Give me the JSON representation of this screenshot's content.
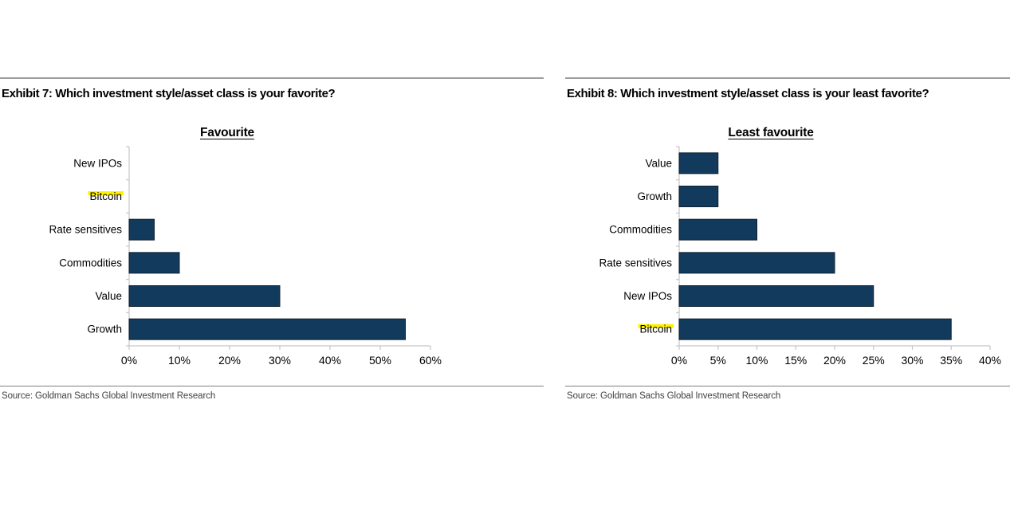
{
  "panels": [
    {
      "exhibit_title": "Exhibit 7: Which investment style/asset class is your favorite?",
      "source": "Source: Goldman Sachs Global Investment Research"
    },
    {
      "exhibit_title": "Exhibit 8: Which investment style/asset class is your least favorite?",
      "source": "Source: Goldman Sachs Global Investment Research"
    }
  ],
  "chart_data": [
    {
      "type": "bar",
      "orientation": "horizontal",
      "title": "Favourite",
      "categories": [
        "New IPOs",
        "Bitcoin",
        "Rate sensitives",
        "Commodities",
        "Value",
        "Growth"
      ],
      "values": [
        0,
        0,
        5,
        10,
        30,
        55
      ],
      "unit": "%",
      "xlim": [
        0,
        60
      ],
      "xtick_step": 10,
      "xtick_labels": [
        "0%",
        "10%",
        "20%",
        "30%",
        "40%",
        "50%",
        "60%"
      ],
      "highlighted_category": "Bitcoin",
      "grid": false,
      "legend": false,
      "bar_color": "#113a5c",
      "bar_border_color": "#10202f",
      "axis_color": "#c6c6c6",
      "highlight_color": "#fff100"
    },
    {
      "type": "bar",
      "orientation": "horizontal",
      "title": "Least favourite",
      "categories": [
        "Value",
        "Growth",
        "Commodities",
        "Rate sensitives",
        "New IPOs",
        "Bitcoin"
      ],
      "values": [
        5,
        5,
        10,
        20,
        25,
        35
      ],
      "unit": "%",
      "xlim": [
        0,
        40
      ],
      "xtick_step": 5,
      "xtick_labels": [
        "0%",
        "5%",
        "10%",
        "15%",
        "20%",
        "25%",
        "30%",
        "35%",
        "40%"
      ],
      "highlighted_category": "Bitcoin",
      "grid": false,
      "legend": false,
      "bar_color": "#113a5c",
      "bar_border_color": "#10202f",
      "axis_color": "#c6c6c6",
      "highlight_color": "#fff100"
    }
  ]
}
